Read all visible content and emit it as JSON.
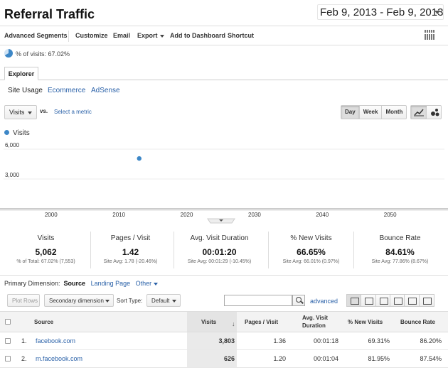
{
  "header": {
    "title": "Referral Traffic",
    "date_range": "Feb 9, 2013 - Feb 9, 2013"
  },
  "toolbar": {
    "items": [
      "Advanced Segments",
      "Customize",
      "Email",
      "Export",
      "Add to Dashboard",
      "Shortcut"
    ]
  },
  "segment": {
    "percent_label": "% of visits: 67.02%"
  },
  "tabs": {
    "explorer": "Explorer"
  },
  "subtabs": [
    "Site Usage",
    "Ecommerce",
    "AdSense"
  ],
  "chart_controls": {
    "metric": "Visits",
    "vs": "vs.",
    "select_metric": "Select a metric",
    "periods": [
      "Day",
      "Week",
      "Month"
    ],
    "active_period": "Day"
  },
  "chart_data": {
    "type": "scatter",
    "series": [
      {
        "name": "Visits",
        "points": [
          {
            "x": 2013,
            "y": 5062
          }
        ]
      }
    ],
    "x_ticks": [
      "2000",
      "2010",
      "2020",
      "2030",
      "2040",
      "2050"
    ],
    "y_ticks": [
      "6,000",
      "3,000"
    ],
    "xlim": [
      1993,
      2058
    ],
    "ylim": [
      0,
      7000
    ],
    "grid": true,
    "legend": "top-left"
  },
  "metrics": [
    {
      "label": "Visits",
      "value": "5,062",
      "sub": "% of Total: 67.02% (7,553)"
    },
    {
      "label": "Pages / Visit",
      "value": "1.42",
      "sub": "Site Avg: 1.78 (-20.46%)"
    },
    {
      "label": "Avg. Visit Duration",
      "value": "00:01:20",
      "sub": "Site Avg: 00:01:29 (-10.45%)"
    },
    {
      "label": "% New Visits",
      "value": "66.65%",
      "sub": "Site Avg: 66.01% (0.97%)"
    },
    {
      "label": "Bounce Rate",
      "value": "84.61%",
      "sub": "Site Avg: 77.86% (8.67%)"
    }
  ],
  "dimension": {
    "label": "Primary Dimension:",
    "active": "Source",
    "landing": "Landing Page",
    "other": "Other"
  },
  "table_tools": {
    "plot_rows": "Plot Rows",
    "secondary": "Secondary dimension",
    "sort_type_label": "Sort Type:",
    "sort_type": "Default",
    "advanced": "advanced"
  },
  "table": {
    "headers": {
      "source": "Source",
      "visits": "Visits",
      "pages": "Pages / Visit",
      "duration_1": "Avg. Visit",
      "duration_2": "Duration",
      "new_visits": "% New Visits",
      "bounce": "Bounce Rate"
    },
    "rows": [
      {
        "num": "1.",
        "source": "facebook.com",
        "visits": "3,803",
        "pages": "1.36",
        "duration": "00:01:18",
        "new_visits": "69.31%",
        "bounce": "86.20%"
      },
      {
        "num": "2.",
        "source": "m.facebook.com",
        "visits": "626",
        "pages": "1.20",
        "duration": "00:01:04",
        "new_visits": "81.95%",
        "bounce": "87.54%"
      }
    ]
  }
}
